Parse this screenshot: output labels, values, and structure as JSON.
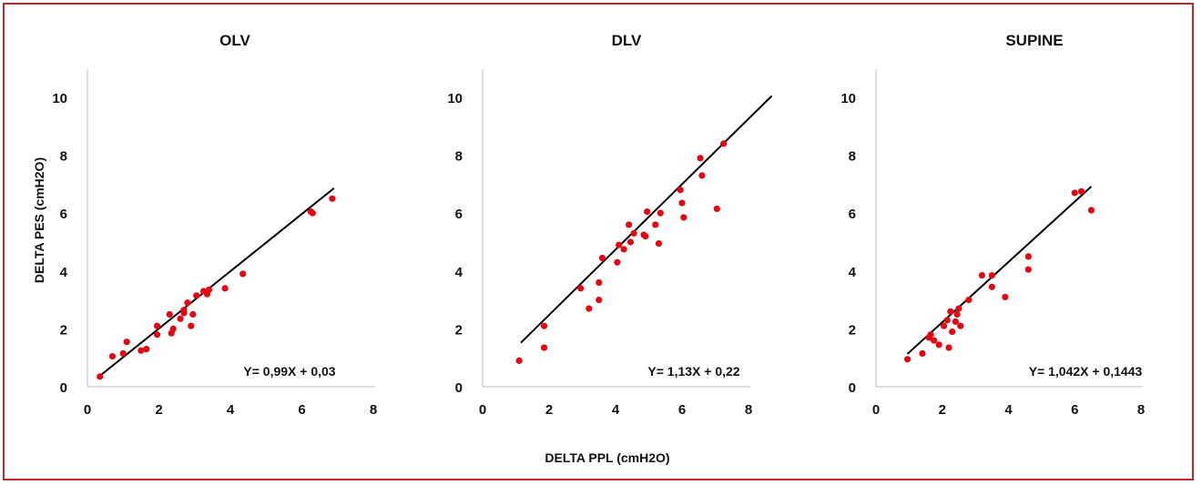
{
  "chart_data": {
    "type": "scatter",
    "shared_xlabel": "DELTA PPL (cmH2O)",
    "shared_ylabel": "DELTA PES (cmH2O)",
    "xlim": [
      0,
      8
    ],
    "ylim": [
      0,
      10
    ],
    "x_ticks": [
      "0",
      "2",
      "4",
      "6",
      "8"
    ],
    "y_ticks": [
      "0",
      "2",
      "4",
      "6",
      "8",
      "10"
    ],
    "grid": false,
    "point_color": "#e30613",
    "line_color": "#000000",
    "panels": [
      {
        "title": "OLV",
        "equation": "Y= 0,99X + 0,03",
        "fit": {
          "slope": 0.99,
          "intercept": 0.03,
          "x_range": [
            0.35,
            6.9
          ]
        },
        "points": [
          [
            0.35,
            0.35
          ],
          [
            0.7,
            1.05
          ],
          [
            1.0,
            1.15
          ],
          [
            1.1,
            1.55
          ],
          [
            1.5,
            1.25
          ],
          [
            1.65,
            1.3
          ],
          [
            1.95,
            2.1
          ],
          [
            1.95,
            1.8
          ],
          [
            2.3,
            2.5
          ],
          [
            2.35,
            1.85
          ],
          [
            2.4,
            2.0
          ],
          [
            2.6,
            2.35
          ],
          [
            2.7,
            2.55
          ],
          [
            2.7,
            2.65
          ],
          [
            2.8,
            2.9
          ],
          [
            2.9,
            2.1
          ],
          [
            2.95,
            2.5
          ],
          [
            3.05,
            3.15
          ],
          [
            3.25,
            3.3
          ],
          [
            3.35,
            3.2
          ],
          [
            3.4,
            3.35
          ],
          [
            3.85,
            3.4
          ],
          [
            4.35,
            3.9
          ],
          [
            6.25,
            6.05
          ],
          [
            6.3,
            6.0
          ],
          [
            6.85,
            6.5
          ]
        ]
      },
      {
        "title": "DLV",
        "equation": "Y= 1,13X + 0,22",
        "fit": {
          "slope": 1.13,
          "intercept": 0.22,
          "x_range": [
            1.15,
            8.7
          ]
        },
        "points": [
          [
            1.1,
            0.9
          ],
          [
            1.85,
            2.1
          ],
          [
            1.85,
            1.35
          ],
          [
            2.95,
            3.4
          ],
          [
            3.2,
            2.7
          ],
          [
            3.5,
            3.6
          ],
          [
            3.5,
            3.0
          ],
          [
            3.6,
            4.45
          ],
          [
            4.05,
            4.3
          ],
          [
            4.1,
            4.9
          ],
          [
            4.25,
            4.75
          ],
          [
            4.4,
            5.6
          ],
          [
            4.45,
            5.0
          ],
          [
            4.55,
            5.3
          ],
          [
            4.85,
            5.25
          ],
          [
            4.9,
            5.2
          ],
          [
            4.95,
            6.05
          ],
          [
            5.2,
            5.6
          ],
          [
            5.3,
            4.95
          ],
          [
            5.35,
            6.0
          ],
          [
            5.95,
            6.8
          ],
          [
            6.05,
            5.85
          ],
          [
            6.0,
            6.35
          ],
          [
            6.55,
            7.9
          ],
          [
            6.6,
            7.3
          ],
          [
            7.05,
            6.15
          ],
          [
            7.25,
            8.4
          ]
        ]
      },
      {
        "title": "SUPINE",
        "equation": "Y= 1,042X + 0,1443",
        "fit": {
          "slope": 1.042,
          "intercept": 0.1443,
          "x_range": [
            0.95,
            6.5
          ]
        },
        "points": [
          [
            0.95,
            0.95
          ],
          [
            1.4,
            1.15
          ],
          [
            1.6,
            1.7
          ],
          [
            1.65,
            1.8
          ],
          [
            1.75,
            1.6
          ],
          [
            1.9,
            1.45
          ],
          [
            2.05,
            2.1
          ],
          [
            2.15,
            2.3
          ],
          [
            2.2,
            1.35
          ],
          [
            2.25,
            2.6
          ],
          [
            2.3,
            1.9
          ],
          [
            2.4,
            2.25
          ],
          [
            2.45,
            2.5
          ],
          [
            2.5,
            2.7
          ],
          [
            2.55,
            2.1
          ],
          [
            2.8,
            3.0
          ],
          [
            3.2,
            3.85
          ],
          [
            3.5,
            3.45
          ],
          [
            3.5,
            3.85
          ],
          [
            3.9,
            3.1
          ],
          [
            4.6,
            4.5
          ],
          [
            4.6,
            4.05
          ],
          [
            6.0,
            6.7
          ],
          [
            6.2,
            6.75
          ],
          [
            6.5,
            6.1
          ]
        ]
      }
    ]
  }
}
